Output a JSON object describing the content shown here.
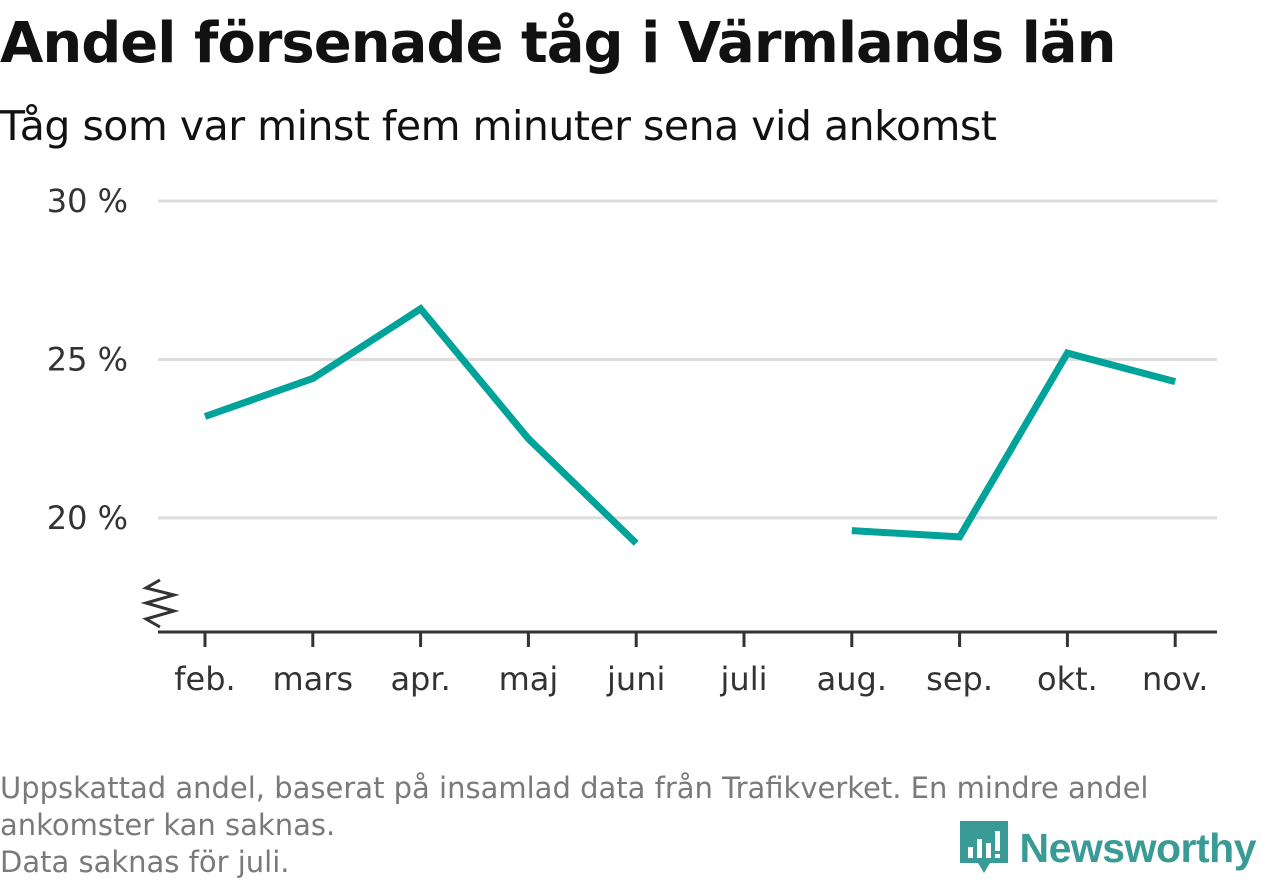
{
  "header": {
    "title": "Andel försenade tåg i Värmlands län",
    "subtitle": "Tåg som var minst fem minuter sena vid ankomst"
  },
  "chart_data": {
    "type": "line",
    "title": "Andel försenade tåg i Värmlands län",
    "subtitle": "Tåg som var minst fem minuter sena vid ankomst",
    "xlabel": "",
    "ylabel": "",
    "categories": [
      "feb.",
      "mars",
      "apr.",
      "maj",
      "juni",
      "juli",
      "aug.",
      "sep.",
      "okt.",
      "nov."
    ],
    "series": [
      {
        "values": [
          23.2,
          24.4,
          26.6,
          22.5,
          19.2,
          null,
          19.6,
          19.4,
          25.2,
          24.3
        ]
      }
    ],
    "y_ticks": [
      20,
      25,
      30
    ],
    "y_tick_labels": [
      "20 %",
      "25 %",
      "30 %"
    ],
    "ylim": [
      16.4,
      30
    ],
    "y_axis_break": true,
    "grid": true,
    "line_color": "#00a39a",
    "grid_color": "#dddddd",
    "axis_color": "#333333"
  },
  "footer": {
    "note": "Uppskattad andel, baserat på insamlad data från Trafikverket. En mindre andel ankomster kan saknas.",
    "missing": "Data saknas för juli."
  },
  "brand": {
    "name": "Newsworthy",
    "color": "#3a9b96",
    "icon": "newsworthy-logo-icon"
  }
}
